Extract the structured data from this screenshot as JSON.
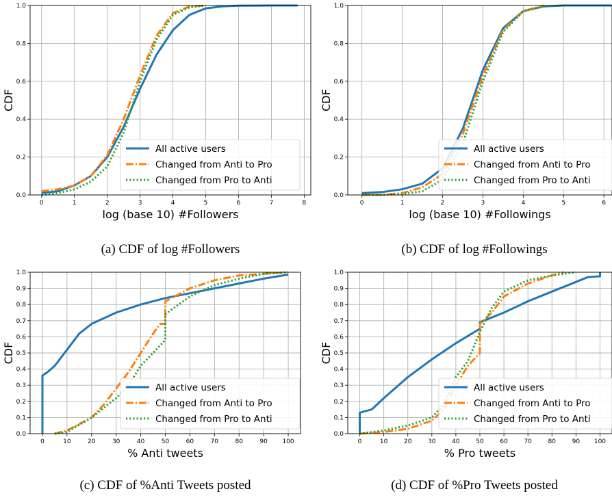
{
  "colors": {
    "all_active": "#1f77b4",
    "anti_to_pro": "#ff7f0e",
    "pro_to_anti": "#2ca02c",
    "grid": "#b0b0b0"
  },
  "legend_labels": [
    "All active users",
    "Changed from Anti to Pro",
    "Changed from Pro to Anti"
  ],
  "chart_data": [
    {
      "id": "a",
      "type": "line",
      "caption": "(a) CDF of log #Followers",
      "xlabel": "log (base 10) #Followers",
      "ylabel": "CDF",
      "xlim": [
        -0.35,
        8.2
      ],
      "ylim": [
        0,
        1
      ],
      "xticks": [
        "0",
        "1",
        "2",
        "3",
        "4",
        "5",
        "6",
        "7",
        "8"
      ],
      "yticks": [
        "0.0",
        "0.2",
        "0.4",
        "0.6",
        "0.8",
        "1.0"
      ],
      "grid": true,
      "legend_position": "lower-right",
      "series": [
        {
          "name": "All active users",
          "style": "solid",
          "points": [
            [
              0,
              0.01
            ],
            [
              0.5,
              0.02
            ],
            [
              1,
              0.05
            ],
            [
              1.5,
              0.1
            ],
            [
              2,
              0.2
            ],
            [
              2.5,
              0.36
            ],
            [
              3,
              0.56
            ],
            [
              3.5,
              0.74
            ],
            [
              4,
              0.87
            ],
            [
              4.5,
              0.95
            ],
            [
              5,
              0.985
            ],
            [
              5.5,
              0.995
            ],
            [
              6,
              0.999
            ],
            [
              7,
              1
            ],
            [
              7.8,
              1
            ]
          ]
        },
        {
          "name": "Changed from Anti to Pro",
          "style": "dashdot",
          "points": [
            [
              0,
              0.02
            ],
            [
              0.5,
              0.03
            ],
            [
              1,
              0.05
            ],
            [
              1.5,
              0.1
            ],
            [
              2,
              0.21
            ],
            [
              2.5,
              0.4
            ],
            [
              3,
              0.63
            ],
            [
              3.5,
              0.84
            ],
            [
              4,
              0.96
            ],
            [
              4.5,
              0.995
            ],
            [
              5,
              1
            ]
          ]
        },
        {
          "name": "Changed from Pro to Anti",
          "style": "dotted",
          "points": [
            [
              0,
              0.0
            ],
            [
              0.5,
              0.01
            ],
            [
              1,
              0.03
            ],
            [
              1.5,
              0.07
            ],
            [
              2,
              0.15
            ],
            [
              2.5,
              0.33
            ],
            [
              3,
              0.6
            ],
            [
              3.5,
              0.82
            ],
            [
              4,
              0.95
            ],
            [
              4.5,
              0.99
            ],
            [
              5,
              1
            ]
          ]
        }
      ]
    },
    {
      "id": "b",
      "type": "line",
      "caption": "(b) CDF of log #Followings",
      "xlabel": "log (base 10) #Followings",
      "ylabel": "CDF",
      "xlim": [
        -0.35,
        6.2
      ],
      "ylim": [
        0,
        1
      ],
      "xticks": [
        "0",
        "1",
        "2",
        "3",
        "4",
        "5",
        "6"
      ],
      "yticks": [
        "0.0",
        "0.2",
        "0.4",
        "0.6",
        "0.8",
        "1.0"
      ],
      "grid": true,
      "legend_position": "lower-right",
      "series": [
        {
          "name": "All active users",
          "style": "solid",
          "points": [
            [
              0,
              0.01
            ],
            [
              0.5,
              0.015
            ],
            [
              1,
              0.03
            ],
            [
              1.5,
              0.06
            ],
            [
              2,
              0.14
            ],
            [
              2.5,
              0.35
            ],
            [
              3,
              0.66
            ],
            [
              3.5,
              0.88
            ],
            [
              4,
              0.97
            ],
            [
              4.5,
              0.995
            ],
            [
              5,
              1
            ],
            [
              6.2,
              1
            ]
          ]
        },
        {
          "name": "Changed from Anti to Pro",
          "style": "dashdot",
          "points": [
            [
              0,
              0.0
            ],
            [
              0.5,
              0.0
            ],
            [
              1,
              0.01
            ],
            [
              1.5,
              0.04
            ],
            [
              2,
              0.11
            ],
            [
              2.5,
              0.32
            ],
            [
              3,
              0.63
            ],
            [
              3.5,
              0.87
            ],
            [
              4,
              0.97
            ],
            [
              4.5,
              1
            ]
          ]
        },
        {
          "name": "Changed from Pro to Anti",
          "style": "dotted",
          "points": [
            [
              0,
              0.0
            ],
            [
              0.5,
              0.0
            ],
            [
              1,
              0.005
            ],
            [
              1.5,
              0.02
            ],
            [
              2,
              0.08
            ],
            [
              2.5,
              0.27
            ],
            [
              3,
              0.6
            ],
            [
              3.5,
              0.86
            ],
            [
              4,
              0.97
            ],
            [
              4.5,
              0.995
            ],
            [
              5,
              1
            ]
          ]
        }
      ]
    },
    {
      "id": "c",
      "type": "line",
      "caption": "(c) CDF of %Anti Tweets posted",
      "xlabel": "% Anti tweets",
      "ylabel": "CDF",
      "xlim": [
        -5,
        105
      ],
      "ylim": [
        0,
        1
      ],
      "xticks": [
        "0",
        "10",
        "20",
        "30",
        "40",
        "50",
        "60",
        "70",
        "80",
        "90",
        "100"
      ],
      "yticks": [
        "0.0",
        "0.1",
        "0.2",
        "0.3",
        "0.4",
        "0.5",
        "0.6",
        "0.7",
        "0.8",
        "0.9",
        "1.0"
      ],
      "grid": true,
      "legend_position": "lower-right",
      "series": [
        {
          "name": "All active users",
          "style": "solid",
          "points": [
            [
              0,
              0
            ],
            [
              0,
              0.36
            ],
            [
              2,
              0.38
            ],
            [
              5,
              0.42
            ],
            [
              10,
              0.52
            ],
            [
              15,
              0.62
            ],
            [
              20,
              0.68
            ],
            [
              30,
              0.75
            ],
            [
              40,
              0.8
            ],
            [
              50,
              0.84
            ],
            [
              60,
              0.87
            ],
            [
              70,
              0.9
            ],
            [
              80,
              0.93
            ],
            [
              90,
              0.96
            ],
            [
              100,
              0.985
            ]
          ]
        },
        {
          "name": "Changed from Anti to Pro",
          "style": "dashdot",
          "points": [
            [
              5,
              0
            ],
            [
              10,
              0.02
            ],
            [
              20,
              0.1
            ],
            [
              25,
              0.18
            ],
            [
              30,
              0.28
            ],
            [
              35,
              0.38
            ],
            [
              40,
              0.5
            ],
            [
              45,
              0.62
            ],
            [
              48,
              0.68
            ],
            [
              50,
              0.68
            ],
            [
              50,
              0.82
            ],
            [
              60,
              0.9
            ],
            [
              70,
              0.95
            ],
            [
              80,
              0.98
            ],
            [
              90,
              0.99
            ],
            [
              100,
              1
            ]
          ]
        },
        {
          "name": "Changed from Pro to Anti",
          "style": "dotted",
          "points": [
            [
              5,
              0
            ],
            [
              10,
              0.01
            ],
            [
              20,
              0.1
            ],
            [
              30,
              0.22
            ],
            [
              35,
              0.3
            ],
            [
              40,
              0.42
            ],
            [
              45,
              0.5
            ],
            [
              50,
              0.58
            ],
            [
              50,
              0.74
            ],
            [
              60,
              0.85
            ],
            [
              70,
              0.92
            ],
            [
              80,
              0.96
            ],
            [
              90,
              0.99
            ],
            [
              100,
              1
            ]
          ]
        }
      ]
    },
    {
      "id": "d",
      "type": "line",
      "caption": "(d) CDF of %Pro Tweets posted",
      "xlabel": "% Pro tweets",
      "ylabel": "CDF",
      "xlim": [
        -5,
        105
      ],
      "ylim": [
        0,
        1
      ],
      "xticks": [
        "0",
        "10",
        "20",
        "30",
        "40",
        "50",
        "60",
        "70",
        "80",
        "90",
        "100"
      ],
      "yticks": [
        "0.0",
        "0.1",
        "0.2",
        "0.3",
        "0.4",
        "0.5",
        "0.6",
        "0.7",
        "0.8",
        "0.9",
        "1.0"
      ],
      "grid": true,
      "legend_position": "lower-right",
      "series": [
        {
          "name": "All active users",
          "style": "solid",
          "points": [
            [
              0,
              0
            ],
            [
              0,
              0.13
            ],
            [
              5,
              0.15
            ],
            [
              10,
              0.22
            ],
            [
              20,
              0.35
            ],
            [
              30,
              0.46
            ],
            [
              40,
              0.56
            ],
            [
              50,
              0.65
            ],
            [
              50,
              0.69
            ],
            [
              60,
              0.75
            ],
            [
              70,
              0.82
            ],
            [
              80,
              0.88
            ],
            [
              90,
              0.94
            ],
            [
              95,
              0.97
            ],
            [
              100,
              0.975
            ],
            [
              100,
              1
            ]
          ]
        },
        {
          "name": "Changed from Anti to Pro",
          "style": "dashdot",
          "points": [
            [
              0,
              0
            ],
            [
              10,
              0.01
            ],
            [
              20,
              0.03
            ],
            [
              30,
              0.08
            ],
            [
              35,
              0.15
            ],
            [
              40,
              0.3
            ],
            [
              45,
              0.42
            ],
            [
              50,
              0.5
            ],
            [
              50,
              0.68
            ],
            [
              55,
              0.75
            ],
            [
              60,
              0.85
            ],
            [
              70,
              0.93
            ],
            [
              80,
              0.98
            ],
            [
              85,
              1
            ]
          ]
        },
        {
          "name": "Changed from Pro to Anti",
          "style": "dotted",
          "points": [
            [
              0,
              0
            ],
            [
              10,
              0.02
            ],
            [
              20,
              0.05
            ],
            [
              30,
              0.1
            ],
            [
              35,
              0.18
            ],
            [
              40,
              0.35
            ],
            [
              45,
              0.45
            ],
            [
              50,
              0.63
            ],
            [
              55,
              0.78
            ],
            [
              60,
              0.88
            ],
            [
              70,
              0.95
            ],
            [
              80,
              0.98
            ],
            [
              90,
              1
            ]
          ]
        }
      ]
    }
  ]
}
